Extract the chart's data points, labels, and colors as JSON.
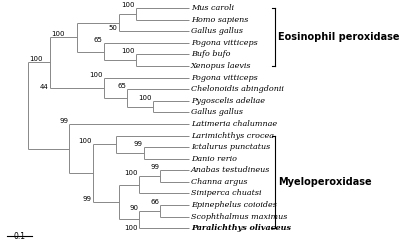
{
  "taxa_keys": [
    "Mus_caroli",
    "Homo_sapiens",
    "Gallus_gallus_1",
    "Pogona_vitticeps_1",
    "Bufo_bufo",
    "Xenopus_laevis",
    "Pogona_vitticeps_2",
    "Chelonoidis_abingdonii",
    "Pygoscelis_adeliae",
    "Gallus_gallus_2",
    "Latimeria_chalumnae",
    "Larimichthys_crocea",
    "Ictalurus_punctatus",
    "Danio_rerio",
    "Anabas_testudineus",
    "Channa_argus",
    "Siniperca_chuatsi",
    "Epinephelus_coioides",
    "Scophthalmus_maximus",
    "Paralichthys_olivaceus"
  ],
  "taxa_display": [
    "Mus caroli",
    "Homo sapiens",
    "Gallus gallus",
    "Pogona vitticeps",
    "Bufo bufo",
    "Xenopus laevis",
    "Pogona vitticeps",
    "Chelonoidis abingdonii",
    "Pygoscelis adeliae",
    "Gallus gallus",
    "Latimeria chalumnae",
    "Larimichthys crocea",
    "Ictalurus punctatus",
    "Danio rerio",
    "Anabas testudineus",
    "Channa argus",
    "Siniperca chuatsi",
    "Epinephelus coioides",
    "Scophthalmus maximus",
    "Paralichthys olivaceus"
  ],
  "bold_taxa": [
    "Paralichthys olivaceus"
  ],
  "background_color": "#ffffff",
  "line_color": "#888888",
  "fontsize": 5.8,
  "bootstrap_fontsize": 5.0,
  "group_label_fontsize": 7.0
}
